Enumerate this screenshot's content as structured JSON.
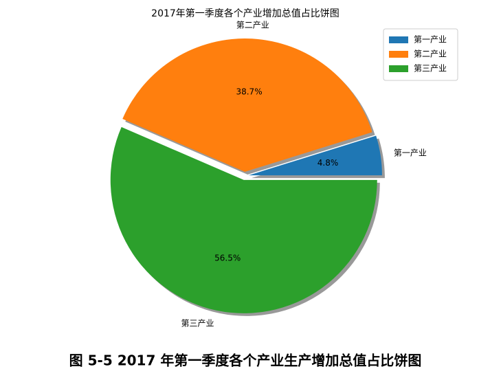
{
  "chart_data": {
    "type": "pie",
    "title": "2017年第一季度各个产业增加总值占比饼图",
    "categories": [
      "第一产业",
      "第二产业",
      "第三产业"
    ],
    "values": [
      4.8,
      38.7,
      56.5
    ],
    "value_labels": [
      "4.8%",
      "38.7%",
      "56.5%"
    ],
    "colors": [
      "#1f77b4",
      "#ff7f0e",
      "#2ca02c"
    ],
    "legend": "upper right",
    "shadow": true
  },
  "caption": "图 5-5 2017 年第一季度各个产业生产增加总值占比饼图"
}
